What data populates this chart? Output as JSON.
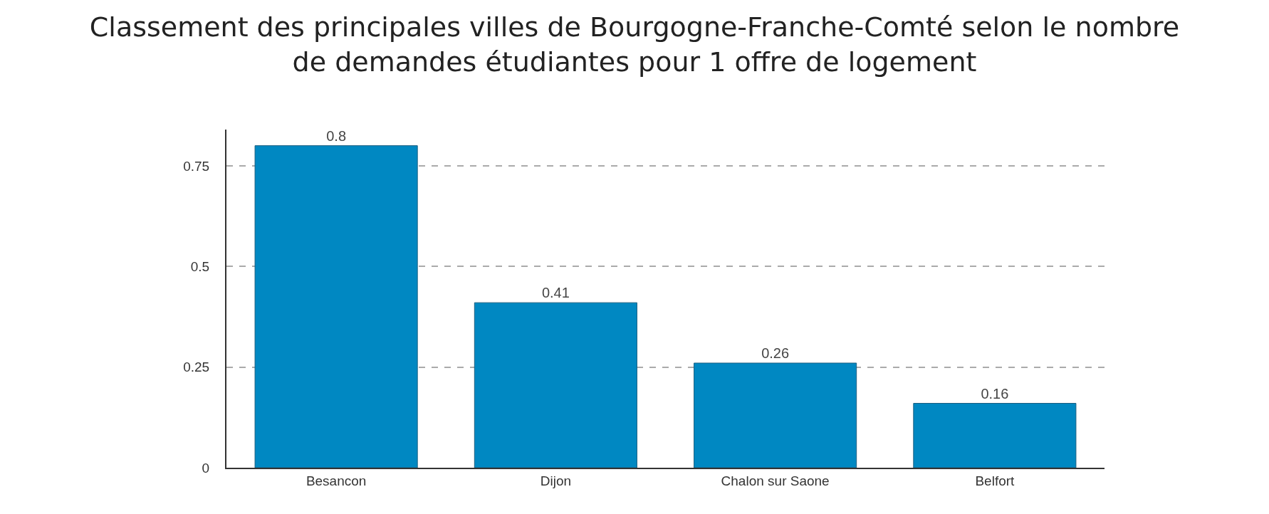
{
  "chart_data": {
    "type": "bar",
    "title": "Classement des principales villes de Bourgogne-Franche-Comté selon le nombre\nde demandes étudiantes pour 1 offre de logement",
    "categories": [
      "Besancon",
      "Dijon",
      "Chalon sur Saone",
      "Belfort"
    ],
    "values": [
      0.8,
      0.41,
      0.26,
      0.16
    ],
    "color": "#0088c2",
    "ylim": [
      0,
      0.84
    ],
    "yticks": [
      0,
      0.25,
      0.5,
      0.75
    ],
    "grid": "y",
    "data_labels": true
  }
}
